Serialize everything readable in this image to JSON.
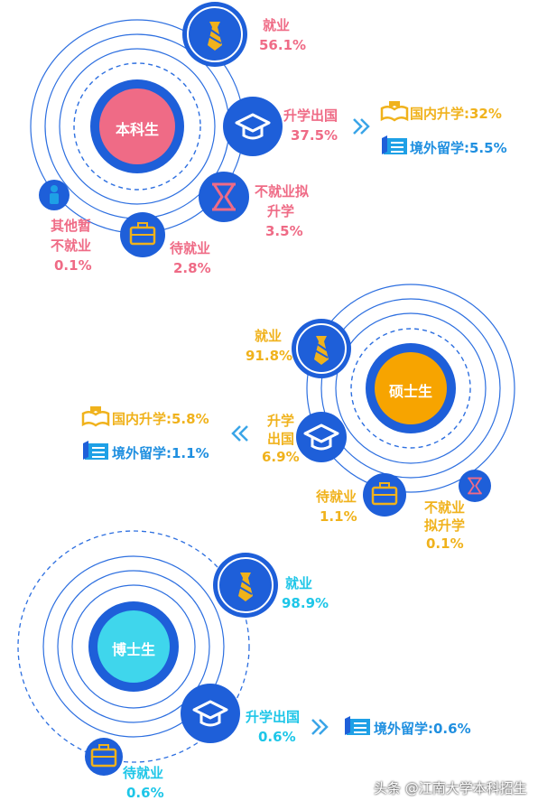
{
  "sections": {
    "undergrad": {
      "center": "本科生",
      "employment": {
        "label": "就业",
        "value": "56.1%"
      },
      "further_study": {
        "label": "升学出国",
        "value": "37.5%"
      },
      "domestic": "国内升学:32%",
      "abroad": "境外留学:5.5%",
      "plan_study": {
        "line1": "不就业拟",
        "line2": "升学",
        "value": "3.5%"
      },
      "waiting": {
        "label": "待就业",
        "value": "2.8%"
      },
      "other": {
        "line1": "其他暂",
        "line2": "不就业",
        "value": "0.1%"
      }
    },
    "master": {
      "center": "硕士生",
      "employment": {
        "label": "就业",
        "value": "91.8%"
      },
      "further_study": {
        "line1": "升学",
        "line2": "出国",
        "value": "6.9%"
      },
      "domestic": "国内升学:5.8%",
      "abroad": "境外留学:1.1%",
      "waiting": {
        "label": "待就业",
        "value": "1.1%"
      },
      "plan_study": {
        "line1": "不就业",
        "line2": "拟升学",
        "value": "0.1%"
      }
    },
    "phd": {
      "center": "博士生",
      "employment": {
        "label": "就业",
        "value": "98.9%"
      },
      "further_study": {
        "label": "升学出国",
        "value": "0.6%"
      },
      "abroad": "境外留学:0.6%",
      "waiting": {
        "label": "待就业",
        "value": "0.6%"
      }
    }
  },
  "watermark": "头条 @江南大学本科招生",
  "colors": {
    "blue": "#1e5fd9",
    "pink": "#ef6b86",
    "yellow": "#f0b21c",
    "cyan": "#1ec6e8",
    "orange": "#f7a400"
  }
}
